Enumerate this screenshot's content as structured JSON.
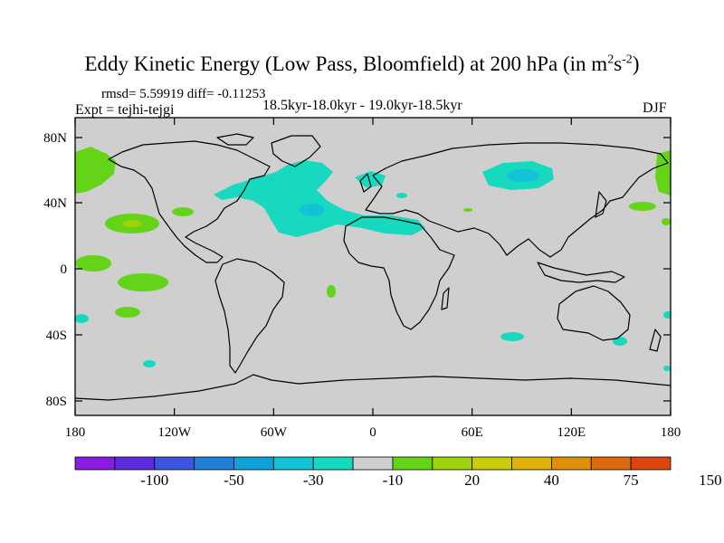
{
  "title": {
    "main": "Eddy Kinetic Energy (Low Pass, Bloomfield) at 200 hPa (in m",
    "sup1": "2",
    "mid": "s",
    "sup2": "-2",
    "end": ")"
  },
  "stats": "rmsd= 5.59919 diff= -0.11253",
  "experiment": "Expt = tejhi-tejgi",
  "period": "18.5kyr-18.0kyr - 19.0kyr-18.5kyr",
  "season": "DJF",
  "lat_ticks": [
    "80N",
    "40N",
    "0",
    "40S",
    "80S"
  ],
  "lon_ticks": [
    "180",
    "120W",
    "60W",
    "0",
    "60E",
    "120E",
    "180"
  ],
  "colorbar": {
    "colors": [
      "#8a1be0",
      "#5a2be0",
      "#3a56de",
      "#1e7fd8",
      "#0fa2d8",
      "#14c2d6",
      "#17d9c0",
      "#cfcfcf",
      "#63d417",
      "#9ed10e",
      "#c8cc0b",
      "#e0b30a",
      "#e08f0b",
      "#de6a0d",
      "#dc4410"
    ],
    "labels": [
      "-100",
      "-50",
      "-30",
      "-10",
      "20",
      "40",
      "75",
      "150"
    ]
  },
  "map_colors": {
    "background": "#cfcfcf",
    "positive": "#63d417",
    "positive_high": "#9ed10e",
    "negative": "#17d9c0",
    "negative_low": "#14c2d6",
    "coast": "#000000"
  }
}
